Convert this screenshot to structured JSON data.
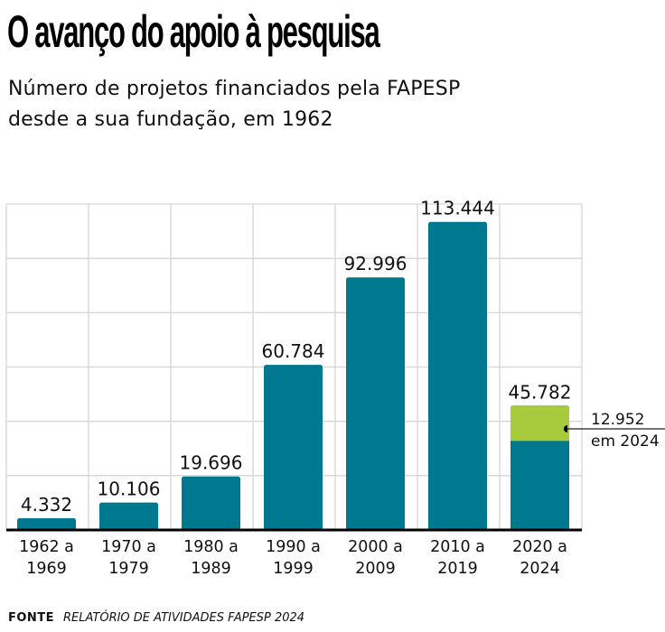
{
  "header": {
    "title": "O avanço do apoio à pesquisa",
    "subtitle_line1": "Número de projetos financiados pela FAPESP",
    "subtitle_line2": "desde a sua fundação, em 1962"
  },
  "footer": {
    "source_label": "FONTE",
    "source_text": "RELATÓRIO DE ATIVIDADES FAPESP 2024"
  },
  "chart_data": {
    "type": "bar",
    "title": "O avanço do apoio à pesquisa",
    "subtitle": "Número de projetos financiados pela FAPESP desde a sua fundação, em 1962",
    "xlabel": "",
    "ylabel": "",
    "ylim": [
      0,
      120000
    ],
    "grid": true,
    "gridline_values": [
      20000,
      40000,
      60000,
      80000,
      100000,
      120000
    ],
    "categories": [
      [
        "1962 a",
        "1969"
      ],
      [
        "1970 a",
        "1979"
      ],
      [
        "1980 a",
        "1989"
      ],
      [
        "1990 a",
        "1999"
      ],
      [
        "2000 a",
        "2009"
      ],
      [
        "2010 a",
        "2019"
      ],
      [
        "2020 a",
        "2024"
      ]
    ],
    "values": [
      4332,
      10106,
      19696,
      60784,
      92996,
      113444,
      45782
    ],
    "value_labels": [
      "4.332",
      "10.106",
      "19.696",
      "60.784",
      "92.996",
      "113.444",
      "45.782"
    ],
    "highlight": {
      "category_index": 6,
      "value": 12952,
      "label_value": "12.952",
      "label_text": "em 2024"
    },
    "colors": {
      "bar": "#00788f",
      "highlight": "#a6cb3c",
      "grid": "#d6d6d6",
      "baseline": "#000000",
      "text": "#111111"
    }
  }
}
